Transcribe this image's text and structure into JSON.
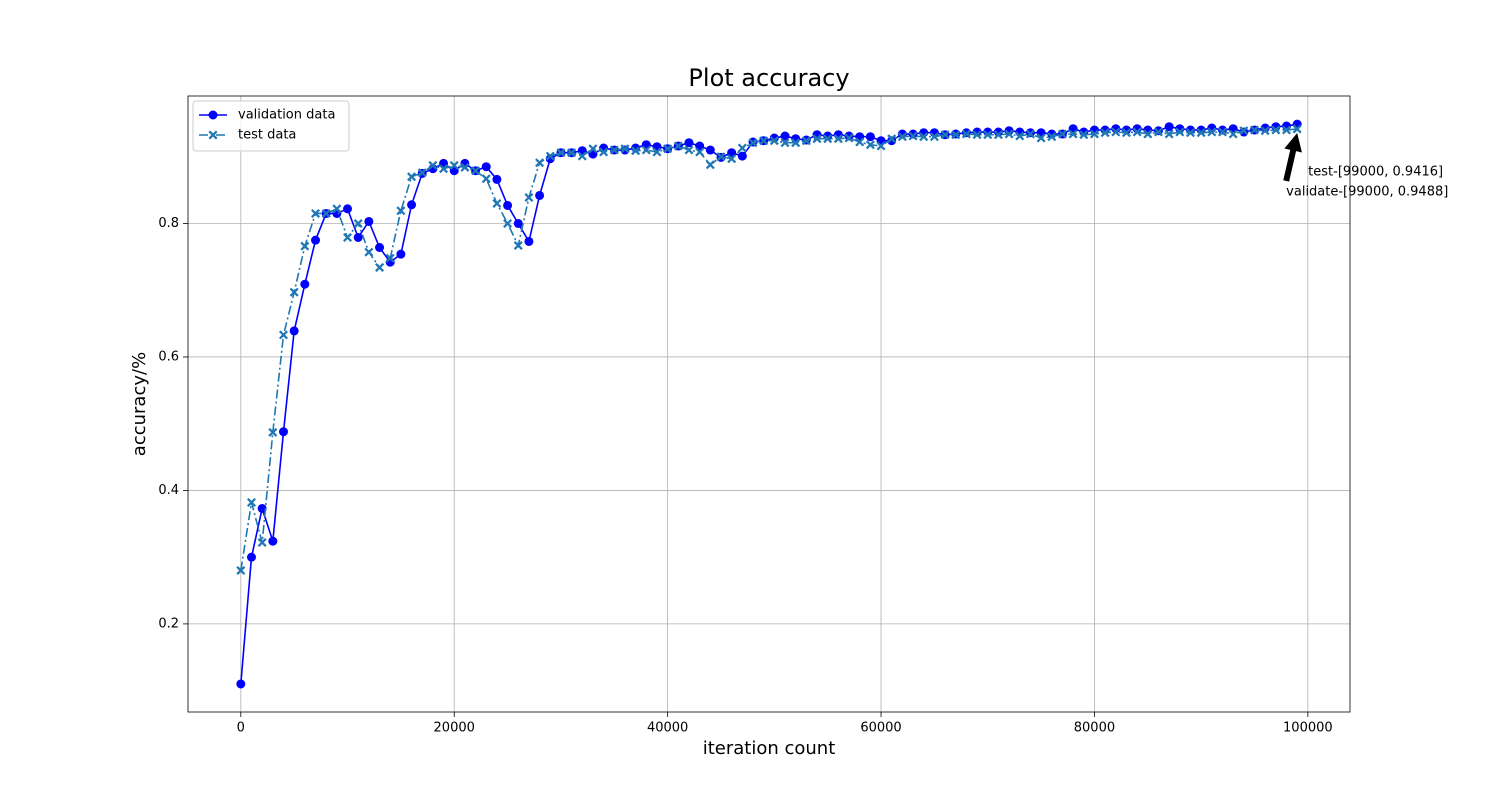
{
  "chart_data": {
    "type": "line",
    "title": "Plot accuracy",
    "xlabel": "iteration count",
    "ylabel": "accuracy/%",
    "x": [
      0,
      1000,
      2000,
      3000,
      4000,
      5000,
      6000,
      7000,
      8000,
      9000,
      10000,
      11000,
      12000,
      13000,
      14000,
      15000,
      16000,
      17000,
      18000,
      19000,
      20000,
      21000,
      22000,
      23000,
      24000,
      25000,
      26000,
      27000,
      28000,
      29000,
      30000,
      31000,
      32000,
      33000,
      34000,
      35000,
      36000,
      37000,
      38000,
      39000,
      40000,
      41000,
      42000,
      43000,
      44000,
      45000,
      46000,
      47000,
      48000,
      49000,
      50000,
      51000,
      52000,
      53000,
      54000,
      55000,
      56000,
      57000,
      58000,
      59000,
      60000,
      61000,
      62000,
      63000,
      64000,
      65000,
      66000,
      67000,
      68000,
      69000,
      70000,
      71000,
      72000,
      73000,
      74000,
      75000,
      76000,
      77000,
      78000,
      79000,
      80000,
      81000,
      82000,
      83000,
      84000,
      85000,
      86000,
      87000,
      88000,
      89000,
      90000,
      91000,
      92000,
      93000,
      94000,
      95000,
      96000,
      97000,
      98000,
      99000
    ],
    "series": [
      {
        "name": "validation data",
        "color": "#0000ff",
        "linestyle": "solid",
        "marker": "circle",
        "values": [
          0.11,
          0.3,
          0.373,
          0.324,
          0.488,
          0.639,
          0.709,
          0.775,
          0.815,
          0.815,
          0.822,
          0.779,
          0.803,
          0.764,
          0.742,
          0.754,
          0.828,
          0.875,
          0.882,
          0.89,
          0.879,
          0.89,
          0.879,
          0.885,
          0.866,
          0.827,
          0.8,
          0.773,
          0.842,
          0.897,
          0.906,
          0.906,
          0.909,
          0.904,
          0.913,
          0.91,
          0.91,
          0.913,
          0.918,
          0.915,
          0.912,
          0.916,
          0.921,
          0.916,
          0.91,
          0.899,
          0.906,
          0.901,
          0.922,
          0.924,
          0.928,
          0.931,
          0.927,
          0.925,
          0.933,
          0.931,
          0.933,
          0.931,
          0.93,
          0.93,
          0.924,
          0.924,
          0.934,
          0.934,
          0.936,
          0.936,
          0.933,
          0.934,
          0.936,
          0.937,
          0.937,
          0.937,
          0.939,
          0.937,
          0.936,
          0.936,
          0.934,
          0.934,
          0.942,
          0.937,
          0.94,
          0.94,
          0.942,
          0.94,
          0.942,
          0.94,
          0.939,
          0.945,
          0.942,
          0.94,
          0.94,
          0.943,
          0.94,
          0.942,
          0.937,
          0.94,
          0.943,
          0.945,
          0.946,
          0.9488
        ]
      },
      {
        "name": "test data",
        "color": "#1f77b4",
        "linestyle": "dashdot",
        "marker": "x",
        "values": [
          0.28,
          0.382,
          0.322,
          0.487,
          0.633,
          0.697,
          0.766,
          0.815,
          0.815,
          0.822,
          0.779,
          0.8,
          0.757,
          0.734,
          0.748,
          0.819,
          0.87,
          0.876,
          0.887,
          0.882,
          0.887,
          0.884,
          0.879,
          0.867,
          0.83,
          0.8,
          0.767,
          0.839,
          0.891,
          0.901,
          0.906,
          0.906,
          0.901,
          0.912,
          0.907,
          0.91,
          0.912,
          0.909,
          0.91,
          0.907,
          0.912,
          0.916,
          0.91,
          0.907,
          0.888,
          0.9,
          0.897,
          0.913,
          0.921,
          0.924,
          0.924,
          0.921,
          0.921,
          0.924,
          0.927,
          0.927,
          0.927,
          0.928,
          0.922,
          0.918,
          0.916,
          0.927,
          0.93,
          0.931,
          0.93,
          0.93,
          0.933,
          0.933,
          0.934,
          0.933,
          0.933,
          0.933,
          0.934,
          0.931,
          0.934,
          0.928,
          0.93,
          0.934,
          0.934,
          0.933,
          0.934,
          0.936,
          0.937,
          0.936,
          0.937,
          0.934,
          0.937,
          0.934,
          0.937,
          0.936,
          0.936,
          0.937,
          0.937,
          0.934,
          0.939,
          0.94,
          0.939,
          0.94,
          0.94,
          0.9416
        ]
      }
    ],
    "annotations": [
      "test-[99000, 0.9416]",
      "validate-[99000, 0.9488]"
    ],
    "xlim": [
      -4950,
      103950
    ],
    "ylim": [
      0.068,
      0.991
    ],
    "xticks": [
      0,
      20000,
      40000,
      60000,
      80000,
      100000
    ],
    "yticks": [
      0.2,
      0.4,
      0.6,
      0.8
    ],
    "grid": true,
    "legend": "upper left"
  }
}
